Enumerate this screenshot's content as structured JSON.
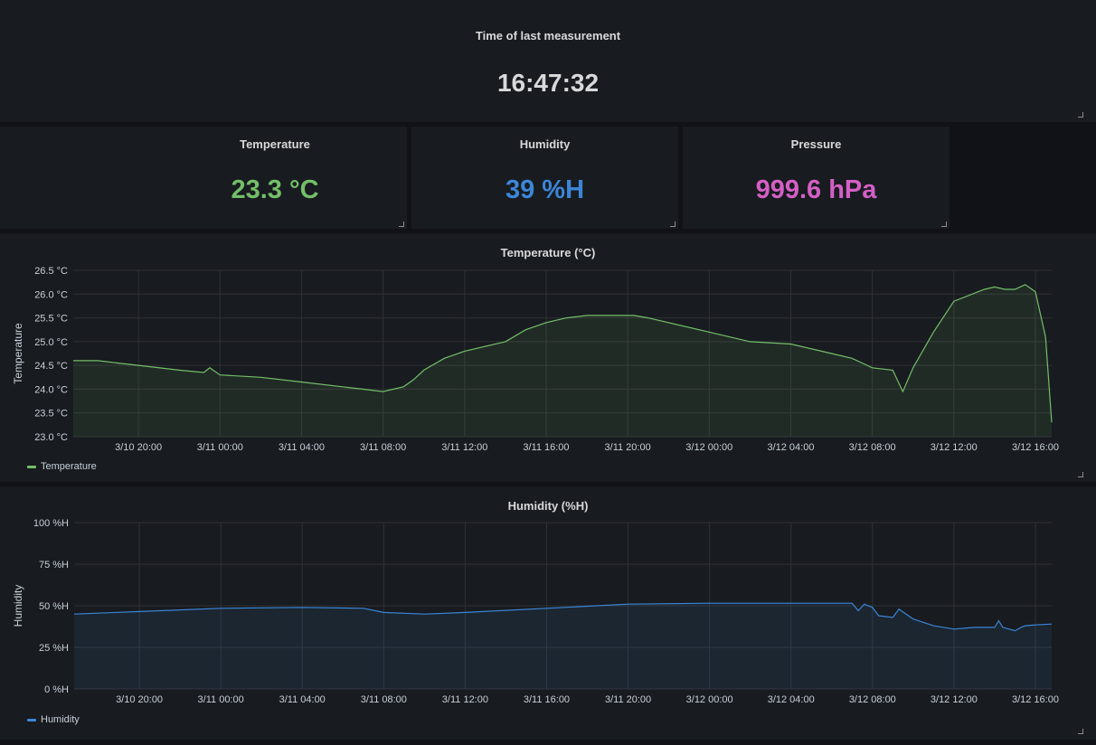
{
  "time_panel": {
    "title": "Time of last measurement",
    "value": "16:47:32"
  },
  "stats": [
    {
      "title": "Temperature",
      "value": "23.3 °C",
      "color": "#73bf69"
    },
    {
      "title": "Humidity",
      "value": "39 %H",
      "color": "#3b86d8"
    },
    {
      "title": "Pressure",
      "value": "999.6 hPa",
      "color": "#d45fc5"
    }
  ],
  "chart_data": [
    {
      "type": "line",
      "title": "Temperature (°C)",
      "ylabel": "Temperature",
      "xlabel": "",
      "x_tick_labels": [
        "3/10 20:00",
        "3/11 00:00",
        "3/11 04:00",
        "3/11 08:00",
        "3/11 12:00",
        "3/11 16:00",
        "3/11 20:00",
        "3/12 00:00",
        "3/12 04:00",
        "3/12 08:00",
        "3/12 12:00",
        "3/12 16:00"
      ],
      "y_tick_labels": [
        "23.0 °C",
        "23.5 °C",
        "24.0 °C",
        "24.5 °C",
        "25.0 °C",
        "25.5 °C",
        "26.0 °C",
        "26.5 °C"
      ],
      "ylim": [
        23.0,
        26.5
      ],
      "xlim_hours": [
        -3.2,
        44.8
      ],
      "x_ticks_hours": [
        0,
        4,
        8,
        12,
        16,
        20,
        24,
        28,
        32,
        36,
        40,
        44
      ],
      "y_ticks": [
        23.0,
        23.5,
        24.0,
        24.5,
        25.0,
        25.5,
        26.0,
        26.5
      ],
      "grid": true,
      "legend": "bottom-left",
      "color": "#73bf69",
      "series": [
        {
          "name": "Temperature",
          "x_hours": [
            -3.2,
            -2,
            0,
            2,
            3.2,
            3.5,
            4,
            6,
            8,
            10,
            11,
            12,
            13,
            13.5,
            14,
            15,
            16,
            18,
            19,
            20,
            21,
            22,
            24,
            24.3,
            25,
            28,
            30,
            32,
            34,
            35,
            35.5,
            36,
            37,
            37.5,
            38,
            39,
            40,
            41.5,
            42,
            42.5,
            43,
            43.5,
            44,
            44.5,
            44.8
          ],
          "values": [
            24.6,
            24.6,
            24.5,
            24.4,
            24.35,
            24.45,
            24.3,
            24.25,
            24.15,
            24.05,
            24.0,
            23.95,
            24.05,
            24.2,
            24.4,
            24.65,
            24.8,
            25.0,
            25.25,
            25.4,
            25.5,
            25.55,
            25.55,
            25.55,
            25.5,
            25.2,
            25.0,
            24.95,
            24.75,
            24.65,
            24.55,
            24.45,
            24.4,
            23.95,
            24.45,
            25.2,
            25.85,
            26.1,
            26.15,
            26.1,
            26.1,
            26.2,
            26.05,
            25.1,
            23.3
          ]
        }
      ]
    },
    {
      "type": "line",
      "title": "Humidity (%H)",
      "ylabel": "Humidity",
      "xlabel": "",
      "x_tick_labels": [
        "3/10 20:00",
        "3/11 00:00",
        "3/11 04:00",
        "3/11 08:00",
        "3/11 12:00",
        "3/11 16:00",
        "3/11 20:00",
        "3/12 00:00",
        "3/12 04:00",
        "3/12 08:00",
        "3/12 12:00",
        "3/12 16:00"
      ],
      "y_tick_labels": [
        "0 %H",
        "25 %H",
        "50 %H",
        "75 %H",
        "100 %H"
      ],
      "ylim": [
        0,
        100
      ],
      "xlim_hours": [
        -3.2,
        44.8
      ],
      "x_ticks_hours": [
        0,
        4,
        8,
        12,
        16,
        20,
        24,
        28,
        32,
        36,
        40,
        44
      ],
      "y_ticks": [
        0,
        25,
        50,
        75,
        100
      ],
      "grid": true,
      "legend": "bottom-left",
      "color": "#3b86d8",
      "series": [
        {
          "name": "Humidity",
          "x_hours": [
            -3.2,
            0,
            4,
            8,
            11,
            12,
            14,
            16,
            20,
            24,
            28,
            32,
            35,
            35.3,
            35.6,
            36,
            36.3,
            37,
            37.3,
            38,
            39,
            40,
            41,
            42,
            42.2,
            42.4,
            43,
            43.3,
            43.5,
            44,
            44.8
          ],
          "values": [
            45,
            46.5,
            48.5,
            49,
            48.5,
            46,
            45,
            46,
            48.5,
            51,
            51.5,
            51.5,
            51.5,
            47,
            51,
            49,
            44,
            43,
            48,
            42,
            38,
            36,
            37,
            37,
            41,
            37,
            35,
            37,
            38,
            38.5,
            39
          ]
        }
      ]
    }
  ]
}
